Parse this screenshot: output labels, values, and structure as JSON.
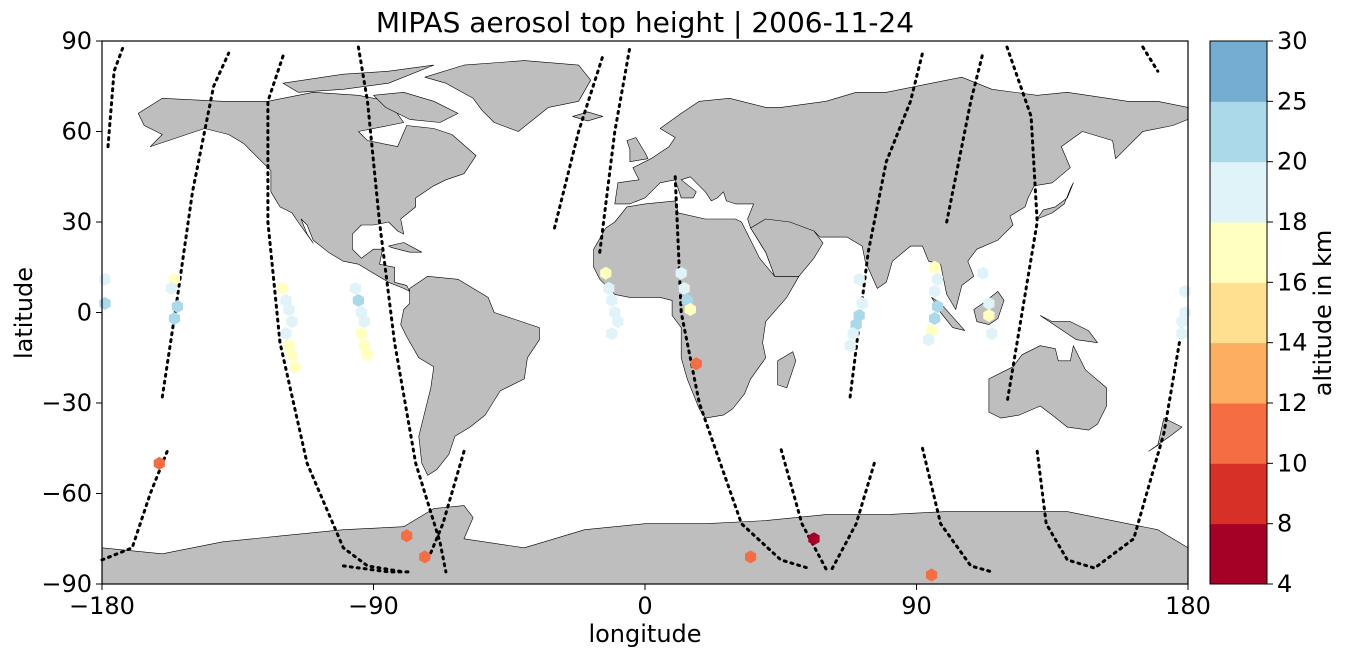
{
  "chart_data": {
    "type": "scatter",
    "title": "MIPAS aerosol top height | 2006-11-24",
    "xlabel": "longitude",
    "ylabel": "latitude",
    "xlim": [
      -180,
      180
    ],
    "ylim": [
      -90,
      90
    ],
    "xticks": [
      "−180",
      "−90",
      "0",
      "90",
      "180"
    ],
    "xtick_values": [
      -180,
      -90,
      0,
      90,
      180
    ],
    "yticks": [
      "−90",
      "−60",
      "−30",
      "0",
      "30",
      "60",
      "90"
    ],
    "ytick_values": [
      -90,
      -60,
      -30,
      0,
      30,
      60,
      90
    ],
    "grid": false,
    "land_color": "#bebebe",
    "track_color": "#000000",
    "colorbar": {
      "label": "altitude in km",
      "bounds": [
        4,
        8,
        10,
        12,
        14,
        16,
        18,
        20,
        25,
        30
      ],
      "tick_labels": [
        "4",
        "8",
        "10",
        "12",
        "14",
        "16",
        "18",
        "20",
        "25",
        "30"
      ],
      "colors": [
        "#a50026",
        "#d73027",
        "#f46d43",
        "#fdae61",
        "#fee090",
        "#ffffbf",
        "#e0f3f8",
        "#abd9e9",
        "#74add1",
        "#4575b4",
        "#313695"
      ]
    },
    "points": [
      {
        "lon": -179,
        "lat": 11,
        "alt": 19
      },
      {
        "lon": -179,
        "lat": 3,
        "alt": 22
      },
      {
        "lon": -156,
        "lat": 11,
        "alt": 17
      },
      {
        "lon": -157,
        "lat": 8,
        "alt": 19
      },
      {
        "lon": -155,
        "lat": 2,
        "alt": 22
      },
      {
        "lon": -156,
        "lat": -2,
        "alt": 22
      },
      {
        "lon": -161,
        "lat": -50,
        "alt": 11
      },
      {
        "lon": -120,
        "lat": 8,
        "alt": 17
      },
      {
        "lon": -119,
        "lat": 4,
        "alt": 19
      },
      {
        "lon": -118,
        "lat": 1,
        "alt": 19
      },
      {
        "lon": -117,
        "lat": -3,
        "alt": 19
      },
      {
        "lon": -119,
        "lat": -7,
        "alt": 19
      },
      {
        "lon": -118,
        "lat": -11,
        "alt": 17
      },
      {
        "lon": -117,
        "lat": -14,
        "alt": 17
      },
      {
        "lon": -116,
        "lat": -18,
        "alt": 17
      },
      {
        "lon": -96,
        "lat": 8,
        "alt": 19
      },
      {
        "lon": -95,
        "lat": 4,
        "alt": 22
      },
      {
        "lon": -94,
        "lat": 0,
        "alt": 19
      },
      {
        "lon": -93,
        "lat": -3,
        "alt": 19
      },
      {
        "lon": -94,
        "lat": -7,
        "alt": 17
      },
      {
        "lon": -93,
        "lat": -11,
        "alt": 17
      },
      {
        "lon": -92,
        "lat": -14,
        "alt": 17
      },
      {
        "lon": -79,
        "lat": -74,
        "alt": 11
      },
      {
        "lon": -73,
        "lat": -81,
        "alt": 11
      },
      {
        "lon": -13,
        "lat": 13,
        "alt": 17
      },
      {
        "lon": -12,
        "lat": 8,
        "alt": 19
      },
      {
        "lon": -11,
        "lat": 4,
        "alt": 19
      },
      {
        "lon": -10,
        "lat": 0,
        "alt": 19
      },
      {
        "lon": -9,
        "lat": -3,
        "alt": 19
      },
      {
        "lon": -11,
        "lat": -7,
        "alt": 19
      },
      {
        "lon": 12,
        "lat": 13,
        "alt": 19
      },
      {
        "lon": 13,
        "lat": 8,
        "alt": 19
      },
      {
        "lon": 14,
        "lat": 4,
        "alt": 22
      },
      {
        "lon": 15,
        "lat": 1,
        "alt": 17
      },
      {
        "lon": 17,
        "lat": -17,
        "alt": 11
      },
      {
        "lon": 35,
        "lat": -81,
        "alt": 11
      },
      {
        "lon": 56,
        "lat": -75,
        "alt": 6
      },
      {
        "lon": 71,
        "lat": 11,
        "alt": 19
      },
      {
        "lon": 72,
        "lat": 3,
        "alt": 19
      },
      {
        "lon": 71,
        "lat": -1,
        "alt": 22
      },
      {
        "lon": 70,
        "lat": -4,
        "alt": 22
      },
      {
        "lon": 69,
        "lat": -7,
        "alt": 19
      },
      {
        "lon": 68,
        "lat": -11,
        "alt": 19
      },
      {
        "lon": 96,
        "lat": 15,
        "alt": 17
      },
      {
        "lon": 97,
        "lat": 11,
        "alt": 19
      },
      {
        "lon": 96,
        "lat": 7,
        "alt": 19
      },
      {
        "lon": 97,
        "lat": 2,
        "alt": 22
      },
      {
        "lon": 96,
        "lat": -2,
        "alt": 22
      },
      {
        "lon": 95,
        "lat": -6,
        "alt": 17
      },
      {
        "lon": 94,
        "lat": -9,
        "alt": 19
      },
      {
        "lon": 112,
        "lat": 13,
        "alt": 19
      },
      {
        "lon": 114,
        "lat": 3,
        "alt": 19
      },
      {
        "lon": 114,
        "lat": -1,
        "alt": 17
      },
      {
        "lon": 115,
        "lat": -7,
        "alt": 19
      },
      {
        "lon": 179,
        "lat": 7,
        "alt": 19
      },
      {
        "lon": 179,
        "lat": 0,
        "alt": 19
      },
      {
        "lon": 178,
        "lat": -3,
        "alt": 19
      },
      {
        "lon": 178,
        "lat": -7,
        "alt": 19
      },
      {
        "lon": 95,
        "lat": -87,
        "alt": 11
      }
    ]
  }
}
